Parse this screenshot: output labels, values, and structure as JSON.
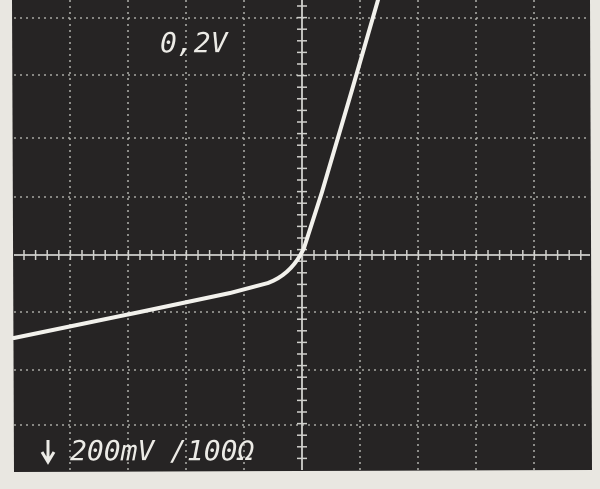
{
  "screen": {
    "top_label": "0,2V",
    "bottom_label": "200mV",
    "bottom_scale": "/100Ω"
  }
}
